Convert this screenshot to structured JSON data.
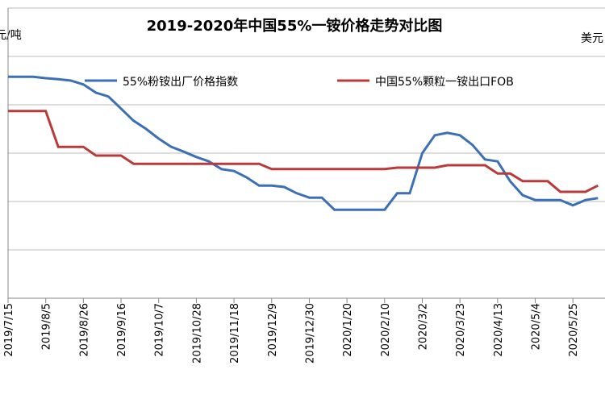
{
  "chart_data": {
    "type": "line",
    "title": "2019-2020年中国55%一铵价格走势对比图",
    "y_label": "元/吨",
    "y2_label": "美元",
    "categories": [
      "2019/7/15",
      null,
      null,
      "2019/8/5",
      null,
      null,
      "2019/8/26",
      null,
      null,
      "2019/9/16",
      null,
      null,
      "2019/10/7",
      null,
      null,
      "2019/10/28",
      null,
      null,
      "2019/11/18",
      null,
      null,
      "2019/12/9",
      null,
      null,
      "2019/12/30",
      null,
      null,
      "2020/1/20",
      null,
      null,
      "2020/2/10",
      null,
      null,
      "2020/3/2",
      null,
      null,
      "2020/3/23",
      null,
      null,
      "2020/4/13",
      null,
      null,
      "2020/5/4",
      null,
      null,
      "2020/5/25",
      null,
      null
    ],
    "series": [
      {
        "name": "55%粉铵出厂价格指数",
        "color": "#3b6fb6",
        "values": [
          4.58,
          4.58,
          4.58,
          4.55,
          4.53,
          4.5,
          4.42,
          4.25,
          4.17,
          3.92,
          3.67,
          3.5,
          3.3,
          3.13,
          3.03,
          2.92,
          2.83,
          2.67,
          2.63,
          2.5,
          2.33,
          2.33,
          2.3,
          2.17,
          2.08,
          2.08,
          1.83,
          1.83,
          1.83,
          1.83,
          1.83,
          2.17,
          2.17,
          3.0,
          3.37,
          3.42,
          3.37,
          3.17,
          2.87,
          2.83,
          2.42,
          2.13,
          2.03,
          2.03,
          2.03,
          1.92,
          2.03,
          2.07
        ]
      },
      {
        "name": "中国55%颗粒一铵出口FOB",
        "color": "#b83a3a",
        "values": [
          3.87,
          3.87,
          3.87,
          3.87,
          3.13,
          3.13,
          3.13,
          2.95,
          2.95,
          2.95,
          2.78,
          2.78,
          2.78,
          2.78,
          2.78,
          2.78,
          2.78,
          2.78,
          2.78,
          2.78,
          2.78,
          2.67,
          2.67,
          2.67,
          2.67,
          2.67,
          2.67,
          2.67,
          2.67,
          2.67,
          2.67,
          2.7,
          2.7,
          2.7,
          2.7,
          2.75,
          2.75,
          2.75,
          2.75,
          2.58,
          2.58,
          2.42,
          2.42,
          2.42,
          2.2,
          2.2,
          2.2,
          2.33
        ]
      }
    ],
    "ylim": [
      0,
      6
    ],
    "yticks": [
      0,
      1,
      2,
      3,
      4,
      5,
      6
    ],
    "grid": true
  }
}
